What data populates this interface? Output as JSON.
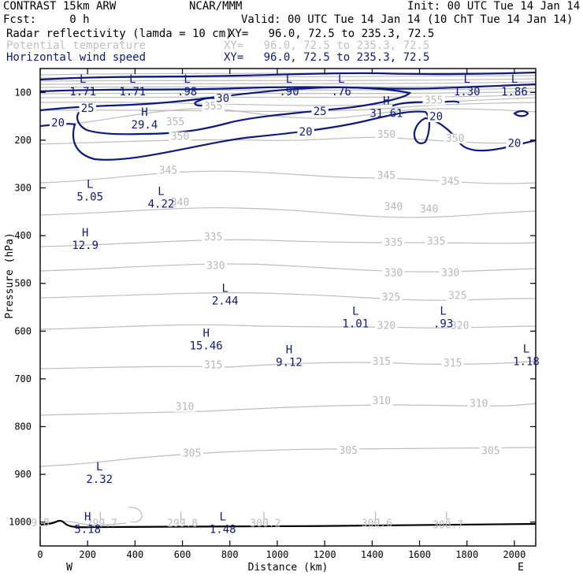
{
  "header": {
    "model": "CONTRAST 15km ARW",
    "center": "NCAR/MMM",
    "init": "Init: 00 UTC Tue 14 Jan 14",
    "fcst": "Fcst:     0 h",
    "valid": "Valid: 00 UTC Tue 14 Jan 14 (10 ChT Tue 14 Jan 14)",
    "fields": [
      {
        "name": "Radar reflectivity (lamda = 10 cm)",
        "xy": "XY=   96.0, 72.5 to 235.3, 72.5",
        "color": "#000000"
      },
      {
        "name": "Potential temperature",
        "xy": "XY=   96.0, 72.5 to 235.3, 72.5",
        "color": "#c0c0c0"
      },
      {
        "name": "Horizontal wind speed",
        "xy": "XY=   96.0, 72.5 to 235.3, 72.5",
        "color": "#0a1a80"
      }
    ]
  },
  "chart_data": {
    "type": "cross-section",
    "xlabel": "Distance (km)",
    "ylabel": "Pressure (hPa)",
    "xlim": [
      0,
      2090
    ],
    "ylim": [
      1050,
      50
    ],
    "x_ticks": [
      0,
      200,
      400,
      600,
      800,
      1000,
      1200,
      1400,
      1600,
      1800,
      2000
    ],
    "y_ticks": [
      100,
      200,
      300,
      400,
      500,
      600,
      700,
      800,
      900,
      1000
    ],
    "x_end_labels": {
      "left": "W",
      "right": "E"
    },
    "theta_contour_labels": [
      {
        "text": "355",
        "x": 570,
        "p": 168
      },
      {
        "text": "355",
        "x": 730,
        "p": 135
      },
      {
        "text": "355",
        "x": 1660,
        "p": 122
      },
      {
        "text": "350",
        "x": 590,
        "p": 198
      },
      {
        "text": "350",
        "x": 1460,
        "p": 194
      },
      {
        "text": "350",
        "x": 1750,
        "p": 202
      },
      {
        "text": "345",
        "x": 540,
        "p": 269
      },
      {
        "text": "345",
        "x": 1460,
        "p": 280
      },
      {
        "text": "345",
        "x": 1730,
        "p": 292
      },
      {
        "text": "340",
        "x": 590,
        "p": 336
      },
      {
        "text": "340",
        "x": 1490,
        "p": 345
      },
      {
        "text": "340",
        "x": 1640,
        "p": 350
      },
      {
        "text": "335",
        "x": 730,
        "p": 409
      },
      {
        "text": "335",
        "x": 1490,
        "p": 420
      },
      {
        "text": "335",
        "x": 1670,
        "p": 418
      },
      {
        "text": "330",
        "x": 740,
        "p": 469
      },
      {
        "text": "330",
        "x": 1490,
        "p": 484
      },
      {
        "text": "330",
        "x": 1730,
        "p": 484
      },
      {
        "text": "325",
        "x": 1480,
        "p": 535
      },
      {
        "text": "325",
        "x": 1760,
        "p": 532
      },
      {
        "text": "320",
        "x": 1460,
        "p": 594
      },
      {
        "text": "320",
        "x": 1770,
        "p": 594
      },
      {
        "text": "315",
        "x": 730,
        "p": 677
      },
      {
        "text": "315",
        "x": 1440,
        "p": 669
      },
      {
        "text": "315",
        "x": 1740,
        "p": 673
      },
      {
        "text": "310",
        "x": 610,
        "p": 764
      },
      {
        "text": "310",
        "x": 1440,
        "p": 752
      },
      {
        "text": "310",
        "x": 1850,
        "p": 758
      },
      {
        "text": "305",
        "x": 640,
        "p": 862
      },
      {
        "text": "305",
        "x": 1300,
        "p": 856
      },
      {
        "text": "305",
        "x": 1900,
        "p": 857
      }
    ],
    "wind_contour_labels": [
      {
        "text": "20",
        "x": 75,
        "p": 170
      },
      {
        "text": "25",
        "x": 200,
        "p": 140
      },
      {
        "text": "30",
        "x": 770,
        "p": 119
      },
      {
        "text": "25",
        "x": 1180,
        "p": 146
      },
      {
        "text": "20",
        "x": 1120,
        "p": 189
      },
      {
        "text": "20",
        "x": 1670,
        "p": 157
      },
      {
        "text": "20",
        "x": 2000,
        "p": 213
      }
    ],
    "extrema": [
      {
        "type": "L",
        "value": "1.71",
        "x": 180,
        "p": 83
      },
      {
        "type": "L",
        "value": "1.71",
        "x": 390,
        "p": 83
      },
      {
        "type": "L",
        "value": ".98",
        "x": 620,
        "p": 83
      },
      {
        "type": "L",
        "value": ".90",
        "x": 1050,
        "p": 83
      },
      {
        "type": "L",
        "value": ".76",
        "x": 1270,
        "p": 83
      },
      {
        "type": "L",
        "value": "1.30",
        "x": 1800,
        "p": 83
      },
      {
        "type": "L",
        "value": "1.86",
        "x": 2000,
        "p": 83
      },
      {
        "type": "H",
        "value": "31.61",
        "x": 1460,
        "p": 128
      },
      {
        "type": "H",
        "value": "29.4",
        "x": 440,
        "p": 152
      },
      {
        "type": "L",
        "value": "5.05",
        "x": 210,
        "p": 303
      },
      {
        "type": "L",
        "value": "4.22",
        "x": 510,
        "p": 318
      },
      {
        "type": "H",
        "value": "12.9",
        "x": 190,
        "p": 405
      },
      {
        "type": "L",
        "value": "2.44",
        "x": 780,
        "p": 521
      },
      {
        "type": "L",
        "value": "1.01",
        "x": 1330,
        "p": 569
      },
      {
        "type": "L",
        "value": ".93",
        "x": 1700,
        "p": 569
      },
      {
        "type": "H",
        "value": "15.46",
        "x": 700,
        "p": 615
      },
      {
        "type": "H",
        "value": "9.12",
        "x": 1050,
        "p": 650
      },
      {
        "type": "L",
        "value": "1.18",
        "x": 2050,
        "p": 648
      },
      {
        "type": "L",
        "value": "2.32",
        "x": 250,
        "p": 895
      },
      {
        "type": "H",
        "value": "5.18",
        "x": 200,
        "p": 1000
      },
      {
        "type": "L",
        "value": "1.48",
        "x": 770,
        "p": 1000
      }
    ],
    "surface_theta_labels": [
      {
        "text": "L",
        "x": 260,
        "p": 988,
        "row": 0
      },
      {
        "text": "299.7",
        "x": 260,
        "p": 1003,
        "row": 1
      },
      {
        "text": "L",
        "x": 600,
        "p": 988,
        "row": 0
      },
      {
        "text": "299.8",
        "x": 600,
        "p": 1003,
        "row": 1
      },
      {
        "text": "L",
        "x": 950,
        "p": 988,
        "row": 0
      },
      {
        "text": "300.2",
        "x": 950,
        "p": 1003,
        "row": 1
      },
      {
        "text": "L",
        "x": 1420,
        "p": 988,
        "row": 0
      },
      {
        "text": "300.6",
        "x": 1420,
        "p": 1003,
        "row": 1
      },
      {
        "text": "L",
        "x": 1720,
        "p": 988,
        "row": 0
      },
      {
        "text": "300.7",
        "x": 1720,
        "p": 1006,
        "row": 1
      },
      {
        "text": "9.8",
        "x": 0,
        "p": 1002,
        "row": 1
      }
    ]
  }
}
